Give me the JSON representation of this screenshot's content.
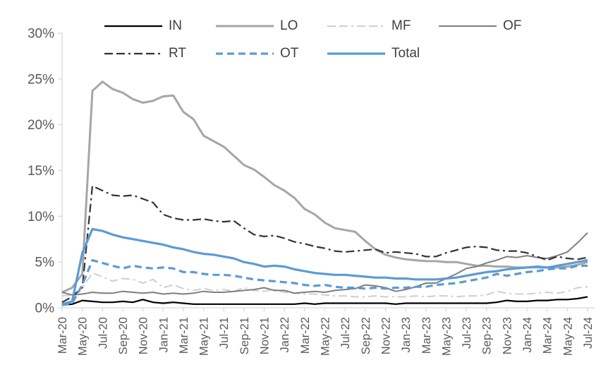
{
  "page": {
    "background": "#FFFFFF"
  },
  "chart_data": {
    "type": "line",
    "title": "",
    "xlabel": "",
    "ylabel": "",
    "ylim": [
      0,
      30
    ],
    "grid": "off",
    "legend_position": "top",
    "axis_color": "#D9D9D9",
    "tick_label_color": "#595959",
    "legend_text_color": "#404040",
    "y_ticks": [
      "0%",
      "5%",
      "10%",
      "15%",
      "20%",
      "25%",
      "30%"
    ],
    "x_tick_every": 2,
    "categories": [
      "Mar-20",
      "Apr-20",
      "May-20",
      "Jun-20",
      "Jul-20",
      "Aug-20",
      "Sep-20",
      "Oct-20",
      "Nov-20",
      "Dec-20",
      "Jan-21",
      "Feb-21",
      "Mar-21",
      "Apr-21",
      "May-21",
      "Jun-21",
      "Jul-21",
      "Aug-21",
      "Sep-21",
      "Oct-21",
      "Nov-21",
      "Dec-21",
      "Jan-22",
      "Feb-22",
      "Mar-22",
      "Apr-22",
      "May-22",
      "Jun-22",
      "Jul-22",
      "Aug-22",
      "Sep-22",
      "Oct-22",
      "Nov-22",
      "Dec-22",
      "Jan-23",
      "Feb-23",
      "Mar-23",
      "Apr-23",
      "May-23",
      "Jun-23",
      "Jul-23",
      "Aug-23",
      "Sep-23",
      "Oct-23",
      "Nov-23",
      "Dec-23",
      "Jan-24",
      "Feb-24",
      "Mar-24",
      "Apr-24",
      "May-24",
      "Jun-24",
      "Jul-24"
    ],
    "series": [
      {
        "name": "IN",
        "color": "#000000",
        "style": "solid",
        "width": 2.2,
        "values": [
          0.3,
          0.4,
          0.8,
          0.7,
          0.6,
          0.6,
          0.7,
          0.6,
          0.9,
          0.6,
          0.5,
          0.6,
          0.5,
          0.4,
          0.4,
          0.4,
          0.4,
          0.4,
          0.4,
          0.4,
          0.4,
          0.4,
          0.4,
          0.4,
          0.5,
          0.4,
          0.5,
          0.5,
          0.5,
          0.5,
          0.5,
          0.5,
          0.5,
          0.4,
          0.5,
          0.5,
          0.5,
          0.5,
          0.5,
          0.5,
          0.5,
          0.5,
          0.5,
          0.6,
          0.8,
          0.7,
          0.7,
          0.8,
          0.8,
          0.9,
          0.9,
          1.0,
          1.2
        ]
      },
      {
        "name": "LO",
        "color": "#A6A6A6",
        "style": "solid",
        "width": 3,
        "values": [
          1.7,
          2.2,
          3.7,
          23.7,
          24.7,
          23.9,
          23.5,
          22.8,
          22.4,
          22.6,
          23.1,
          23.2,
          21.4,
          20.6,
          18.8,
          18.2,
          17.6,
          16.6,
          15.6,
          15.1,
          14.3,
          13.4,
          12.8,
          12.0,
          10.8,
          10.2,
          9.3,
          8.7,
          8.5,
          8.3,
          7.3,
          6.4,
          5.8,
          5.5,
          5.3,
          5.2,
          5.1,
          5.1,
          5.0,
          5.0,
          4.8,
          4.6,
          4.6,
          4.5,
          4.5,
          4.4,
          4.4,
          4.4,
          4.4,
          4.4,
          4.5,
          4.7,
          5.0
        ]
      },
      {
        "name": "MF",
        "color": "#CFCFCF",
        "style": "dash-dot",
        "width": 2,
        "values": [
          1.3,
          1.4,
          2.2,
          3.8,
          3.4,
          2.9,
          3.2,
          3.1,
          2.7,
          3.1,
          2.2,
          2.5,
          2.1,
          1.9,
          2.1,
          1.9,
          2.0,
          1.8,
          2.2,
          1.9,
          1.8,
          2.0,
          1.7,
          1.6,
          1.5,
          1.5,
          1.4,
          1.3,
          1.3,
          1.2,
          1.2,
          1.3,
          1.2,
          1.2,
          1.2,
          1.3,
          1.2,
          1.3,
          1.3,
          1.2,
          1.3,
          1.3,
          1.4,
          1.8,
          1.6,
          1.5,
          1.5,
          1.6,
          1.7,
          1.6,
          1.8,
          2.2,
          2.3
        ]
      },
      {
        "name": "OF",
        "color": "#7F7F7F",
        "style": "solid",
        "width": 2,
        "values": [
          1.7,
          1.4,
          1.5,
          1.7,
          1.6,
          1.6,
          1.8,
          1.7,
          1.6,
          1.7,
          1.5,
          1.6,
          1.5,
          1.6,
          1.8,
          1.7,
          1.7,
          1.8,
          1.9,
          2.0,
          2.2,
          1.9,
          1.9,
          1.6,
          1.7,
          1.8,
          1.7,
          1.9,
          2.0,
          2.1,
          2.5,
          2.4,
          2.2,
          1.8,
          2.0,
          2.3,
          2.7,
          2.7,
          3.2,
          3.7,
          4.3,
          4.5,
          4.9,
          5.2,
          5.6,
          5.5,
          5.7,
          5.5,
          5.4,
          5.7,
          6.1,
          7.1,
          8.2
        ]
      },
      {
        "name": "RT",
        "color": "#333333",
        "style": "dash-dot",
        "width": 2.2,
        "values": [
          0.6,
          1.2,
          2.2,
          13.3,
          12.8,
          12.3,
          12.2,
          12.3,
          11.9,
          11.5,
          10.2,
          9.8,
          9.6,
          9.6,
          9.7,
          9.5,
          9.4,
          9.5,
          8.7,
          8.0,
          7.8,
          7.9,
          7.6,
          7.2,
          7.0,
          6.7,
          6.5,
          6.2,
          6.1,
          6.2,
          6.3,
          6.4,
          6.0,
          6.1,
          6.0,
          5.9,
          5.6,
          5.6,
          6.0,
          6.3,
          6.6,
          6.7,
          6.6,
          6.3,
          6.2,
          6.2,
          6.0,
          5.6,
          5.2,
          5.6,
          5.4,
          5.3,
          5.5
        ]
      },
      {
        "name": "OT",
        "color": "#5B9BD5",
        "style": "dash",
        "width": 3.2,
        "values": [
          0.3,
          0.5,
          2.5,
          5.2,
          4.9,
          4.6,
          4.3,
          4.6,
          4.4,
          4.3,
          4.4,
          4.3,
          3.9,
          3.9,
          3.7,
          3.6,
          3.6,
          3.5,
          3.3,
          3.1,
          3.0,
          2.9,
          2.8,
          2.7,
          2.5,
          2.4,
          2.5,
          2.3,
          2.2,
          2.2,
          2.1,
          2.2,
          2.1,
          2.2,
          2.2,
          2.3,
          2.3,
          2.5,
          2.6,
          2.7,
          2.9,
          3.1,
          3.3,
          3.7,
          3.5,
          3.7,
          3.9,
          4.0,
          4.2,
          4.3,
          4.3,
          4.6,
          4.6
        ]
      },
      {
        "name": "Total",
        "color": "#5B9BD5",
        "style": "solid",
        "width": 3.2,
        "values": [
          0.4,
          0.7,
          6.0,
          8.6,
          8.4,
          8.0,
          7.7,
          7.5,
          7.3,
          7.1,
          6.9,
          6.6,
          6.4,
          6.1,
          5.9,
          5.8,
          5.6,
          5.4,
          5.0,
          4.8,
          4.5,
          4.6,
          4.5,
          4.2,
          4.0,
          3.8,
          3.7,
          3.6,
          3.6,
          3.5,
          3.4,
          3.3,
          3.3,
          3.2,
          3.2,
          3.1,
          3.1,
          3.1,
          3.2,
          3.3,
          3.5,
          3.7,
          3.9,
          4.0,
          4.2,
          4.3,
          4.4,
          4.5,
          4.4,
          4.6,
          4.8,
          5.0,
          5.2
        ]
      }
    ]
  }
}
